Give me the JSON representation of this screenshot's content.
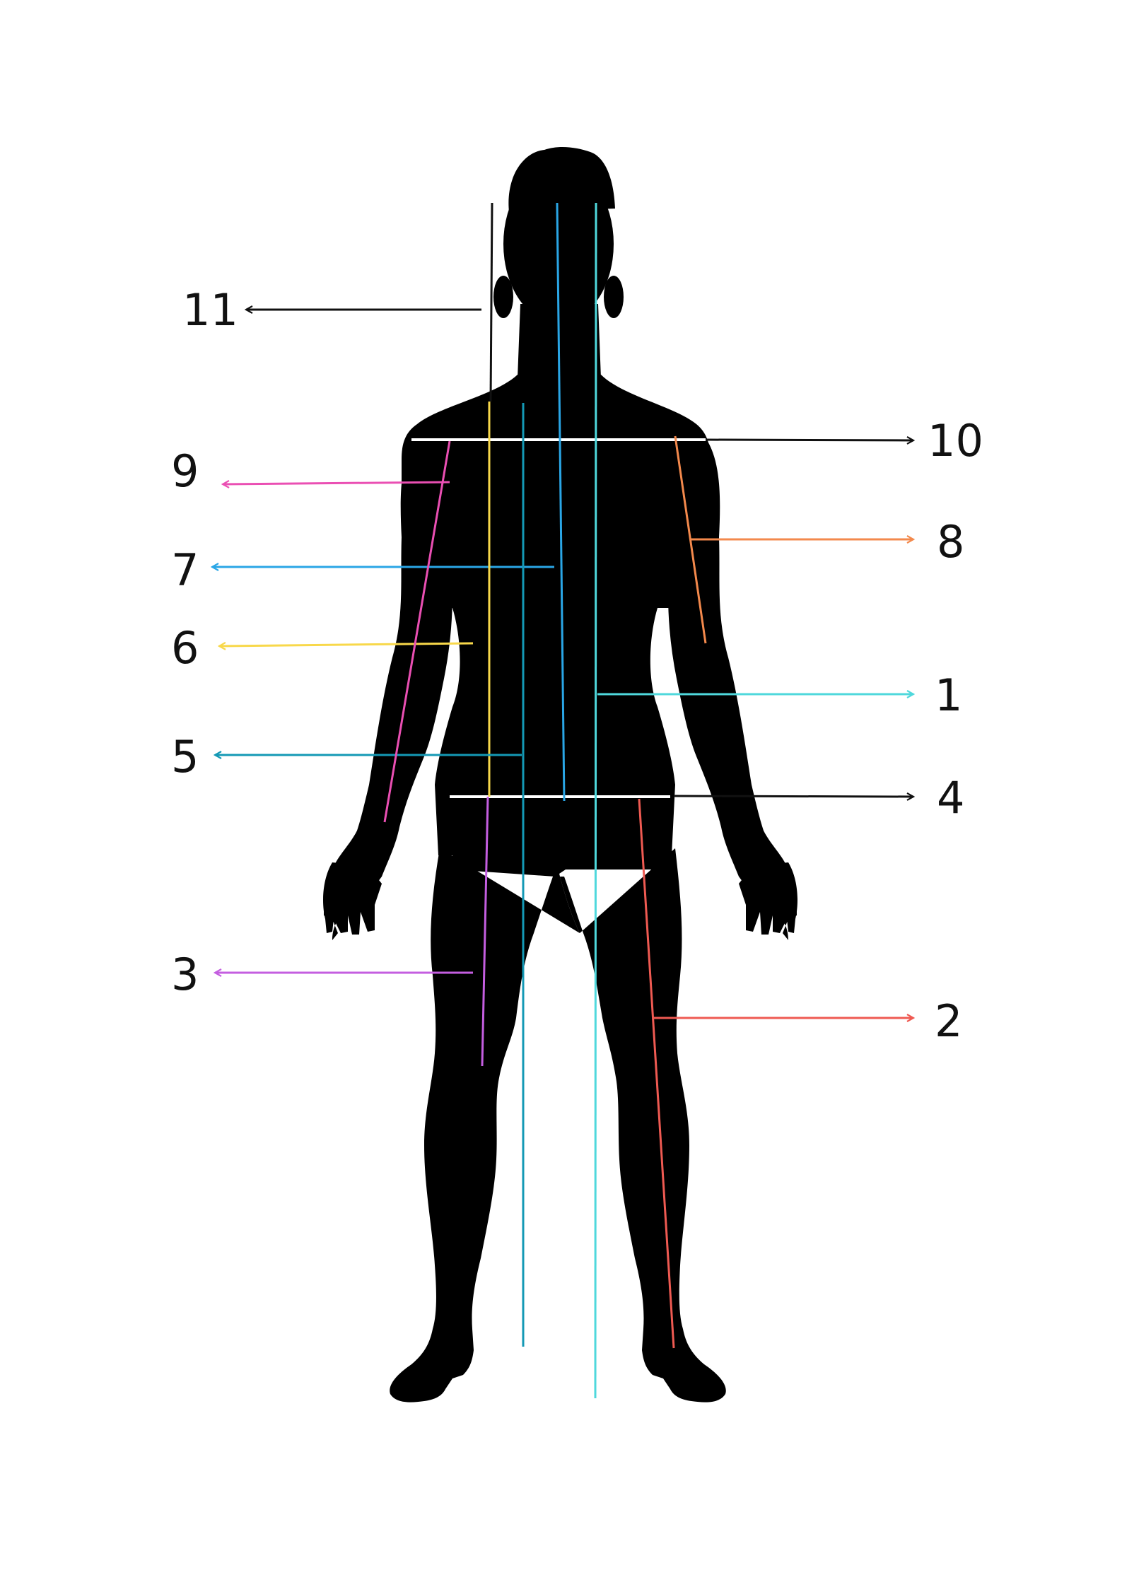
{
  "diagram": {
    "figure": "human-body-silhouette",
    "measurements": [
      {
        "id": "1",
        "label": "1",
        "color": "#4fd8dc"
      },
      {
        "id": "2",
        "label": "2",
        "color": "#ef5a52"
      },
      {
        "id": "3",
        "label": "3",
        "color": "#c45ee0"
      },
      {
        "id": "4",
        "label": "4",
        "color": "#111111"
      },
      {
        "id": "5",
        "label": "5",
        "color": "#1499b5"
      },
      {
        "id": "6",
        "label": "6",
        "color": "#f8d84a"
      },
      {
        "id": "7",
        "label": "7",
        "color": "#2aa6e6"
      },
      {
        "id": "8",
        "label": "8",
        "color": "#f3894c"
      },
      {
        "id": "9",
        "label": "9",
        "color": "#ea4fb3"
      },
      {
        "id": "10",
        "label": "10",
        "color": "#111111"
      },
      {
        "id": "11",
        "label": "11",
        "color": "#111111"
      }
    ],
    "colors": {
      "silhouette": "#000000",
      "shoulder_hip_bars": "#ffffff",
      "background": "#ffffff"
    }
  }
}
